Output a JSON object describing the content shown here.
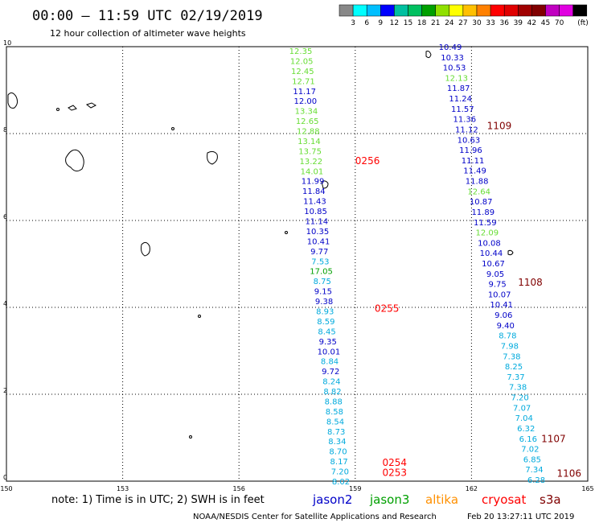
{
  "header": {
    "title": "00:00 – 11:59 UTC 02/19/2019",
    "subtitle": "12 hour collection of altimeter wave heights"
  },
  "colorbar": {
    "colors": [
      "#888888",
      "#00ffff",
      "#00bfff",
      "#0000ff",
      "#00c0a0",
      "#00c060",
      "#00a000",
      "#90e000",
      "#ffff00",
      "#ffc000",
      "#ff8000",
      "#ff0000",
      "#e00000",
      "#a00000",
      "#800000",
      "#c000c0",
      "#e000e0",
      "#000000"
    ],
    "labels": [
      "3",
      "6",
      "9",
      "12",
      "15",
      "18",
      "21",
      "24",
      "27",
      "30",
      "33",
      "36",
      "39",
      "42",
      "45",
      "70"
    ],
    "unit": "(ft)"
  },
  "axes": {
    "x_ticks": [
      "150",
      "153",
      "156",
      "159",
      "162",
      "165"
    ],
    "y_ticks": [
      "0",
      "2",
      "4",
      "6",
      "8",
      "10"
    ]
  },
  "legend": {
    "note": "note:  1) Time is in UTC;  2) SWH is in feet",
    "sats": [
      {
        "name": "jason2",
        "color": "#0000c8"
      },
      {
        "name": "jason3",
        "color": "#00a000"
      },
      {
        "name": "altika",
        "color": "#ff9000"
      },
      {
        "name": "cryosat",
        "color": "#ff0000"
      },
      {
        "name": "s3a",
        "color": "#800000"
      }
    ]
  },
  "footer": {
    "credit": "NOAA/NESDIS Center for Satellite Applications and Research",
    "timestamp": "Feb 20 13:27:11 UTC 2019"
  },
  "chart_data": {
    "type": "scatter",
    "xlim": [
      150,
      165
    ],
    "ylim": [
      0,
      10
    ],
    "grid": true,
    "track_a": [
      {
        "v": "12.35",
        "c": "#66dd33"
      },
      {
        "v": "12.05",
        "c": "#66dd33"
      },
      {
        "v": "12.45",
        "c": "#66dd33"
      },
      {
        "v": "12.71",
        "c": "#66dd33"
      },
      {
        "v": "11.17",
        "c": "#0000c8"
      },
      {
        "v": "12.00",
        "c": "#0000c8"
      },
      {
        "v": "13.34",
        "c": "#66dd33"
      },
      {
        "v": "12.65",
        "c": "#66dd33"
      },
      {
        "v": "12.88",
        "c": "#66dd33"
      },
      {
        "v": "13.14",
        "c": "#66dd33"
      },
      {
        "v": "13.75",
        "c": "#66dd33"
      },
      {
        "v": "13.22",
        "c": "#66dd33"
      },
      {
        "v": "14.01",
        "c": "#66dd33"
      },
      {
        "v": "11.99",
        "c": "#0000c8"
      },
      {
        "v": "11.84",
        "c": "#0000c8"
      },
      {
        "v": "11.43",
        "c": "#0000c8"
      },
      {
        "v": "10.85",
        "c": "#0000c8"
      },
      {
        "v": "11.14",
        "c": "#0000c8"
      },
      {
        "v": "10.35",
        "c": "#0000c8"
      },
      {
        "v": "10.41",
        "c": "#0000c8"
      },
      {
        "v": "9.77",
        "c": "#0000c8"
      },
      {
        "v": "7.53",
        "c": "#00aadd"
      },
      {
        "v": "17.05",
        "c": "#00a000"
      },
      {
        "v": "8.75",
        "c": "#00aadd"
      },
      {
        "v": "9.15",
        "c": "#0000c8"
      },
      {
        "v": "9.38",
        "c": "#0000c8"
      },
      {
        "v": "8.93",
        "c": "#00aadd"
      },
      {
        "v": "8.59",
        "c": "#00aadd"
      },
      {
        "v": "8.45",
        "c": "#00aadd"
      },
      {
        "v": "9.35",
        "c": "#0000c8"
      },
      {
        "v": "10.01",
        "c": "#0000c8"
      },
      {
        "v": "8.84",
        "c": "#00aadd"
      },
      {
        "v": "9.72",
        "c": "#0000c8"
      },
      {
        "v": "8.24",
        "c": "#00aadd"
      },
      {
        "v": "8.82",
        "c": "#00aadd"
      },
      {
        "v": "8.88",
        "c": "#00aadd"
      },
      {
        "v": "8.58",
        "c": "#00aadd"
      },
      {
        "v": "8.54",
        "c": "#00aadd"
      },
      {
        "v": "8.73",
        "c": "#00aadd"
      },
      {
        "v": "8.34",
        "c": "#00aadd"
      },
      {
        "v": "8.70",
        "c": "#00aadd"
      },
      {
        "v": "8.17",
        "c": "#00aadd"
      },
      {
        "v": "7.20",
        "c": "#00aadd"
      },
      {
        "v": "8.02",
        "c": "#00aadd"
      }
    ],
    "track_b": [
      {
        "v": "10.49",
        "c": "#0000c8"
      },
      {
        "v": "10.33",
        "c": "#0000c8"
      },
      {
        "v": "10.53",
        "c": "#0000c8"
      },
      {
        "v": "12.13",
        "c": "#66dd33"
      },
      {
        "v": "11.87",
        "c": "#0000c8"
      },
      {
        "v": "11.24",
        "c": "#0000c8"
      },
      {
        "v": "11.57",
        "c": "#0000c8"
      },
      {
        "v": "11.36",
        "c": "#0000c8"
      },
      {
        "v": "11.12",
        "c": "#0000c8"
      },
      {
        "v": "10.63",
        "c": "#0000c8"
      },
      {
        "v": "11.96",
        "c": "#0000c8"
      },
      {
        "v": "11.11",
        "c": "#0000c8"
      },
      {
        "v": "11.49",
        "c": "#0000c8"
      },
      {
        "v": "11.88",
        "c": "#0000c8"
      },
      {
        "v": "12.64",
        "c": "#66dd33"
      },
      {
        "v": "10.87",
        "c": "#0000c8"
      },
      {
        "v": "11.89",
        "c": "#0000c8"
      },
      {
        "v": "11.59",
        "c": "#0000c8"
      },
      {
        "v": "12.09",
        "c": "#66dd33"
      },
      {
        "v": "10.08",
        "c": "#0000c8"
      },
      {
        "v": "10.44",
        "c": "#0000c8"
      },
      {
        "v": "10.67",
        "c": "#0000c8"
      },
      {
        "v": "9.05",
        "c": "#0000c8"
      },
      {
        "v": "9.75",
        "c": "#0000c8"
      },
      {
        "v": "10.07",
        "c": "#0000c8"
      },
      {
        "v": "10.41",
        "c": "#0000c8"
      },
      {
        "v": "9.06",
        "c": "#0000c8"
      },
      {
        "v": "9.40",
        "c": "#0000c8"
      },
      {
        "v": "8.78",
        "c": "#00aadd"
      },
      {
        "v": "7.98",
        "c": "#00aadd"
      },
      {
        "v": "7.38",
        "c": "#00aadd"
      },
      {
        "v": "8.25",
        "c": "#00aadd"
      },
      {
        "v": "7.37",
        "c": "#00aadd"
      },
      {
        "v": "7.38",
        "c": "#00aadd"
      },
      {
        "v": "7.20",
        "c": "#00aadd"
      },
      {
        "v": "7.07",
        "c": "#00aadd"
      },
      {
        "v": "7.04",
        "c": "#00aadd"
      },
      {
        "v": "6.32",
        "c": "#00aadd"
      },
      {
        "v": "6.16",
        "c": "#00aadd"
      },
      {
        "v": "7.02",
        "c": "#00aadd"
      },
      {
        "v": "6.85",
        "c": "#00aadd"
      },
      {
        "v": "7.34",
        "c": "#00aadd"
      },
      {
        "v": "6.28",
        "c": "#00aadd"
      }
    ],
    "time_labels": [
      {
        "t": "0256",
        "c": "#ff0000",
        "x": 159.0,
        "y": 7.3
      },
      {
        "t": "0255",
        "c": "#ff0000",
        "x": 159.5,
        "y": 3.9
      },
      {
        "t": "0254",
        "c": "#ff0000",
        "x": 159.7,
        "y": 0.35
      },
      {
        "t": "0253",
        "c": "#ff0000",
        "x": 159.7,
        "y": 0.12
      },
      {
        "t": "1109",
        "c": "#800000",
        "x": 162.4,
        "y": 8.1
      },
      {
        "t": "1108",
        "c": "#800000",
        "x": 163.2,
        "y": 4.5
      },
      {
        "t": "1107",
        "c": "#800000",
        "x": 163.8,
        "y": 0.9
      },
      {
        "t": "1106",
        "c": "#800000",
        "x": 164.2,
        "y": 0.1
      }
    ]
  }
}
